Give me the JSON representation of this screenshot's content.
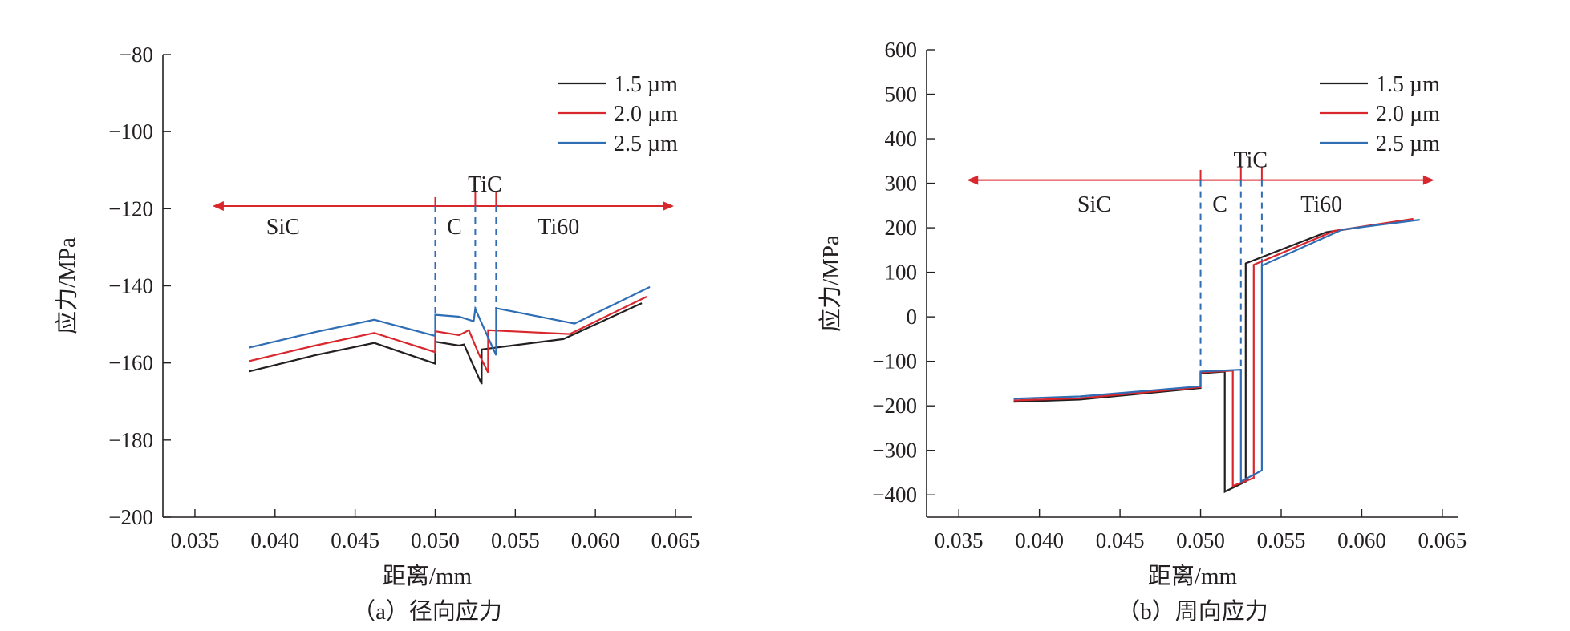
{
  "chart_data": [
    {
      "type": "line",
      "caption": "（a）径向应力",
      "xlabel": "距离/mm",
      "ylabel": "应力/MPa",
      "xlim": [
        0.033,
        0.066
      ],
      "ylim": [
        -200,
        -80
      ],
      "xticks": [
        0.035,
        0.04,
        0.045,
        0.05,
        0.055,
        0.06,
        0.065
      ],
      "xtick_labels": [
        "0.035",
        "0.040",
        "0.045",
        "0.050",
        "0.055",
        "0.060",
        "0.065"
      ],
      "yticks": [
        -200,
        -180,
        -160,
        -140,
        -120,
        -100,
        -80
      ],
      "ytick_labels": [
        "−200",
        "−180",
        "−160",
        "−140",
        "−120",
        "−100",
        "−80"
      ],
      "legend": {
        "position": "top-right"
      },
      "series": [
        {
          "name": "1.5 µm",
          "color": "#231f20",
          "points": [
            [
              0.0384,
              -162.2
            ],
            [
              0.0425,
              -158
            ],
            [
              0.0462,
              -154.8
            ],
            [
              0.05,
              -160.2
            ],
            [
              0.05,
              -154.5
            ],
            [
              0.0515,
              -155.5
            ],
            [
              0.0518,
              -155.2
            ],
            [
              0.0522,
              -159
            ],
            [
              0.0529,
              -165.5
            ],
            [
              0.0529,
              -156.5
            ],
            [
              0.058,
              -153.8
            ],
            [
              0.0629,
              -144.5
            ]
          ]
        },
        {
          "name": "2.0 µm",
          "color": "#d9272e",
          "points": [
            [
              0.0384,
              -159.5
            ],
            [
              0.0425,
              -155.5
            ],
            [
              0.0462,
              -152.2
            ],
            [
              0.05,
              -157.2
            ],
            [
              0.05,
              -151.8
            ],
            [
              0.0515,
              -152.8
            ],
            [
              0.0521,
              -151.5
            ],
            [
              0.0527,
              -157.5
            ],
            [
              0.0533,
              -162.5
            ],
            [
              0.0533,
              -151.5
            ],
            [
              0.0584,
              -152.5
            ],
            [
              0.0632,
              -142.8
            ]
          ]
        },
        {
          "name": "2.5 µm",
          "color": "#2f6db5",
          "points": [
            [
              0.0384,
              -156
            ],
            [
              0.0425,
              -152
            ],
            [
              0.0462,
              -148.8
            ],
            [
              0.05,
              -153
            ],
            [
              0.05,
              -147.5
            ],
            [
              0.0515,
              -148
            ],
            [
              0.0524,
              -149.2
            ],
            [
              0.0525,
              -146
            ],
            [
              0.0538,
              -158
            ],
            [
              0.0538,
              -145.8
            ],
            [
              0.0587,
              -149.8
            ],
            [
              0.0634,
              -140.3
            ]
          ]
        }
      ],
      "regions": {
        "labels": [
          {
            "text": "SiC",
            "x": 0.0405,
            "y": -124.5
          },
          {
            "text": "C",
            "x": 0.0512,
            "y": -124.5
          },
          {
            "text": "TiC",
            "x": 0.0531,
            "y": -113.5
          },
          {
            "text": "Ti60",
            "x": 0.0577,
            "y": -124.5
          }
        ],
        "arrow": {
          "x1": 0.0361,
          "x2": 0.0649,
          "y": -119.3,
          "color": "#d9272e"
        },
        "boundaries": [
          {
            "x": 0.05,
            "y_top": -117,
            "y_bottom": -153,
            "top_color": "#d9272e",
            "bottom_color": "#2f6db5"
          },
          {
            "x": 0.0525,
            "y_top": -115.5,
            "y_bottom": -148,
            "top_color": "#d9272e",
            "bottom_color": "#2f6db5"
          },
          {
            "x": 0.0538,
            "y_top": -115.5,
            "y_bottom": -146,
            "top_color": "#d9272e",
            "bottom_color": "#2f6db5"
          }
        ]
      }
    },
    {
      "type": "line",
      "caption": "（b）周向应力",
      "xlabel": "距离/mm",
      "ylabel": "应力/MPa",
      "xlim": [
        0.033,
        0.066
      ],
      "ylim": [
        -450,
        600
      ],
      "xticks": [
        0.035,
        0.04,
        0.045,
        0.05,
        0.055,
        0.06,
        0.065
      ],
      "xtick_labels": [
        "0.035",
        "0.040",
        "0.045",
        "0.050",
        "0.055",
        "0.060",
        "0.065"
      ],
      "yticks": [
        -400,
        -300,
        -200,
        -100,
        0,
        100,
        200,
        300,
        400,
        500,
        600
      ],
      "ytick_labels": [
        "−400",
        "−300",
        "−200",
        "−100",
        "0",
        "100",
        "200",
        "300",
        "400",
        "500",
        "600"
      ],
      "legend": {
        "position": "top-right"
      },
      "series": [
        {
          "name": "1.5 µm",
          "color": "#231f20",
          "points": [
            [
              0.0384,
              -191
            ],
            [
              0.0425,
              -186
            ],
            [
              0.05,
              -160
            ],
            [
              0.05,
              -127
            ],
            [
              0.0515,
              -123
            ],
            [
              0.0515,
              -393
            ],
            [
              0.0528,
              -370
            ],
            [
              0.0528,
              120
            ],
            [
              0.0578,
              190
            ],
            [
              0.0629,
              217
            ]
          ]
        },
        {
          "name": "2.0 µm",
          "color": "#d9272e",
          "points": [
            [
              0.0384,
              -188
            ],
            [
              0.0425,
              -183
            ],
            [
              0.05,
              -158
            ],
            [
              0.05,
              -125
            ],
            [
              0.052,
              -121
            ],
            [
              0.052,
              -380
            ],
            [
              0.0533,
              -362
            ],
            [
              0.0533,
              117
            ],
            [
              0.0583,
              193
            ],
            [
              0.0632,
              220
            ]
          ]
        },
        {
          "name": "2.5 µm",
          "color": "#2f6db5",
          "points": [
            [
              0.0384,
              -184
            ],
            [
              0.0425,
              -179
            ],
            [
              0.05,
              -156
            ],
            [
              0.05,
              -123
            ],
            [
              0.0525,
              -119
            ],
            [
              0.0525,
              -370
            ],
            [
              0.0538,
              -345
            ],
            [
              0.0538,
              115
            ],
            [
              0.0588,
              196
            ],
            [
              0.0636,
              218
            ]
          ]
        }
      ],
      "regions": {
        "labels": [
          {
            "text": "SiC",
            "x": 0.0434,
            "y": 254
          },
          {
            "text": "C",
            "x": 0.0512,
            "y": 254
          },
          {
            "text": "TiC",
            "x": 0.0531,
            "y": 354
          },
          {
            "text": "Ti60",
            "x": 0.0575,
            "y": 254
          }
        ],
        "arrow": {
          "x1": 0.0355,
          "x2": 0.0645,
          "y": 307,
          "color": "#d9272e"
        },
        "boundaries": [
          {
            "x": 0.05,
            "y_top": 330,
            "y_bottom": -130,
            "top_color": "#d9272e",
            "bottom_color": "#2f6db5"
          },
          {
            "x": 0.0525,
            "y_top": 338,
            "y_bottom": -118,
            "top_color": "#d9272e",
            "bottom_color": "#2f6db5"
          },
          {
            "x": 0.0538,
            "y_top": 338,
            "y_bottom": 110,
            "top_color": "#d9272e",
            "bottom_color": "#2f6db5"
          }
        ]
      }
    }
  ]
}
